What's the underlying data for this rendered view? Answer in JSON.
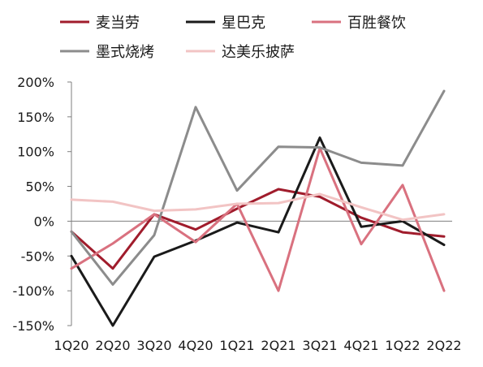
{
  "chart_data": {
    "type": "line",
    "title": "",
    "xlabel": "",
    "ylabel": "",
    "categories": [
      "1Q20",
      "2Q20",
      "3Q20",
      "4Q20",
      "1Q21",
      "2Q21",
      "3Q21",
      "4Q21",
      "1Q22",
      "2Q22"
    ],
    "ylim": [
      -150,
      200
    ],
    "yticks": [
      -150,
      -100,
      -50,
      0,
      50,
      100,
      150,
      200
    ],
    "ytick_labels": [
      "-150%",
      "-100%",
      "-50%",
      "0%",
      "50%",
      "100%",
      "150%",
      "200%"
    ],
    "grid": false,
    "legend_position": "top",
    "series": [
      {
        "name": "麦当劳",
        "color": "#a01c2c",
        "values": [
          -15,
          -68,
          10,
          -12,
          18,
          46,
          35,
          5,
          -16,
          -22
        ]
      },
      {
        "name": "星巴克",
        "color": "#1a1a1a",
        "values": [
          -50,
          -150,
          -51,
          -28,
          -2,
          -16,
          120,
          -8,
          0,
          -34
        ]
      },
      {
        "name": "百胜餐饮",
        "color": "#d9717f",
        "values": [
          -68,
          -32,
          10,
          -30,
          25,
          -100,
          105,
          -33,
          52,
          -100
        ]
      },
      {
        "name": "墨式烧烤",
        "color": "#8c8c8c",
        "values": [
          -15,
          -91,
          -20,
          164,
          44,
          107,
          106,
          84,
          80,
          187
        ]
      },
      {
        "name": "达美乐披萨",
        "color": "#f2c4c4",
        "values": [
          31,
          28,
          15,
          17,
          25,
          26,
          39,
          20,
          2,
          10
        ]
      }
    ]
  }
}
